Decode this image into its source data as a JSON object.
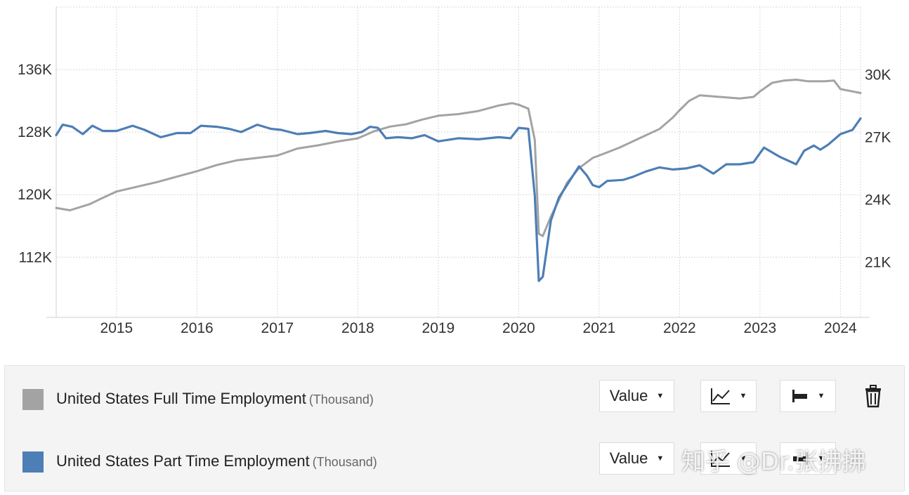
{
  "colors": {
    "full_time": "#a3a3a3",
    "part_time": "#4d7eb5",
    "grid": "#d8d8d8"
  },
  "legend": {
    "rows": [
      {
        "label": "United States Full Time Employment",
        "unit": "(Thousand)",
        "value_control": "Value"
      },
      {
        "label": "United States Part Time Employment",
        "unit": "(Thousand)",
        "value_control": "Value"
      }
    ],
    "icons": {
      "chart_type": "line-chart-icon",
      "axis_side": "axis-left-icon",
      "delete": "trash-icon"
    }
  },
  "watermark": "知乎 @Dr.张拂拂",
  "chart_data": {
    "type": "line",
    "x_ticks": [
      "2015",
      "2016",
      "2017",
      "2018",
      "2019",
      "2020",
      "2021",
      "2022",
      "2023",
      "2024"
    ],
    "x_range": [
      2014.25,
      2024.25
    ],
    "grid": true,
    "y_left": {
      "ticks": [
        "136K",
        "128K",
        "120K",
        "112K"
      ],
      "tick_values": [
        136000,
        128000,
        120000,
        112000
      ],
      "range": [
        104300,
        144000
      ]
    },
    "y_right": {
      "ticks": [
        "30K",
        "27K",
        "24K",
        "21K"
      ],
      "tick_values": [
        30000,
        27000,
        24000,
        21000
      ],
      "range": [
        18350,
        33250
      ]
    },
    "series": [
      {
        "name": "United States Full Time Employment",
        "axis": "left",
        "points": [
          [
            2014.25,
            118300
          ],
          [
            2014.42,
            118000
          ],
          [
            2014.67,
            118800
          ],
          [
            2014.83,
            119600
          ],
          [
            2015.0,
            120400
          ],
          [
            2015.25,
            121000
          ],
          [
            2015.5,
            121600
          ],
          [
            2015.75,
            122300
          ],
          [
            2016.0,
            123000
          ],
          [
            2016.25,
            123800
          ],
          [
            2016.5,
            124400
          ],
          [
            2016.75,
            124700
          ],
          [
            2017.0,
            125000
          ],
          [
            2017.25,
            125900
          ],
          [
            2017.5,
            126300
          ],
          [
            2017.75,
            126800
          ],
          [
            2018.0,
            127200
          ],
          [
            2018.2,
            128100
          ],
          [
            2018.4,
            128700
          ],
          [
            2018.6,
            129000
          ],
          [
            2018.8,
            129600
          ],
          [
            2019.0,
            130100
          ],
          [
            2019.25,
            130300
          ],
          [
            2019.5,
            130700
          ],
          [
            2019.75,
            131400
          ],
          [
            2019.92,
            131700
          ],
          [
            2020.0,
            131500
          ],
          [
            2020.12,
            131000
          ],
          [
            2020.2,
            127000
          ],
          [
            2020.25,
            115000
          ],
          [
            2020.3,
            114700
          ],
          [
            2020.4,
            117200
          ],
          [
            2020.5,
            119300
          ],
          [
            2020.6,
            121500
          ],
          [
            2020.75,
            123400
          ],
          [
            2020.92,
            124700
          ],
          [
            2021.0,
            125000
          ],
          [
            2021.25,
            126000
          ],
          [
            2021.5,
            127200
          ],
          [
            2021.75,
            128400
          ],
          [
            2021.92,
            129900
          ],
          [
            2022.0,
            130800
          ],
          [
            2022.12,
            132000
          ],
          [
            2022.25,
            132700
          ],
          [
            2022.5,
            132500
          ],
          [
            2022.75,
            132300
          ],
          [
            2022.92,
            132500
          ],
          [
            2023.0,
            133200
          ],
          [
            2023.15,
            134300
          ],
          [
            2023.3,
            134600
          ],
          [
            2023.45,
            134700
          ],
          [
            2023.6,
            134500
          ],
          [
            2023.8,
            134500
          ],
          [
            2023.92,
            134600
          ],
          [
            2024.0,
            133500
          ],
          [
            2024.15,
            133200
          ],
          [
            2024.25,
            133000
          ]
        ]
      },
      {
        "name": "United States Part Time Employment",
        "axis": "right",
        "points": [
          [
            2014.25,
            27100
          ],
          [
            2014.33,
            27600
          ],
          [
            2014.45,
            27500
          ],
          [
            2014.58,
            27150
          ],
          [
            2014.7,
            27550
          ],
          [
            2014.83,
            27300
          ],
          [
            2015.0,
            27300
          ],
          [
            2015.2,
            27550
          ],
          [
            2015.35,
            27350
          ],
          [
            2015.55,
            27000
          ],
          [
            2015.75,
            27200
          ],
          [
            2015.92,
            27200
          ],
          [
            2016.05,
            27550
          ],
          [
            2016.25,
            27500
          ],
          [
            2016.4,
            27400
          ],
          [
            2016.55,
            27250
          ],
          [
            2016.75,
            27600
          ],
          [
            2016.92,
            27400
          ],
          [
            2017.05,
            27350
          ],
          [
            2017.25,
            27150
          ],
          [
            2017.4,
            27200
          ],
          [
            2017.6,
            27300
          ],
          [
            2017.75,
            27200
          ],
          [
            2017.92,
            27150
          ],
          [
            2018.05,
            27250
          ],
          [
            2018.15,
            27500
          ],
          [
            2018.25,
            27450
          ],
          [
            2018.35,
            26950
          ],
          [
            2018.5,
            27000
          ],
          [
            2018.67,
            26950
          ],
          [
            2018.83,
            27100
          ],
          [
            2019.0,
            26800
          ],
          [
            2019.25,
            26950
          ],
          [
            2019.5,
            26900
          ],
          [
            2019.75,
            27000
          ],
          [
            2019.9,
            26950
          ],
          [
            2020.0,
            27450
          ],
          [
            2020.12,
            27400
          ],
          [
            2020.2,
            24200
          ],
          [
            2020.25,
            20100
          ],
          [
            2020.3,
            20300
          ],
          [
            2020.4,
            23000
          ],
          [
            2020.5,
            24100
          ],
          [
            2020.6,
            24700
          ],
          [
            2020.7,
            25300
          ],
          [
            2020.75,
            25600
          ],
          [
            2020.85,
            25150
          ],
          [
            2020.92,
            24700
          ],
          [
            2021.0,
            24600
          ],
          [
            2021.1,
            24900
          ],
          [
            2021.3,
            24950
          ],
          [
            2021.42,
            25100
          ],
          [
            2021.58,
            25350
          ],
          [
            2021.75,
            25550
          ],
          [
            2021.92,
            25450
          ],
          [
            2022.08,
            25500
          ],
          [
            2022.25,
            25650
          ],
          [
            2022.42,
            25250
          ],
          [
            2022.58,
            25700
          ],
          [
            2022.75,
            25700
          ],
          [
            2022.92,
            25800
          ],
          [
            2023.05,
            26500
          ],
          [
            2023.25,
            26050
          ],
          [
            2023.45,
            25700
          ],
          [
            2023.55,
            26350
          ],
          [
            2023.67,
            26600
          ],
          [
            2023.75,
            26400
          ],
          [
            2023.85,
            26650
          ],
          [
            2024.0,
            27150
          ],
          [
            2024.15,
            27350
          ],
          [
            2024.25,
            27900
          ]
        ]
      }
    ]
  }
}
